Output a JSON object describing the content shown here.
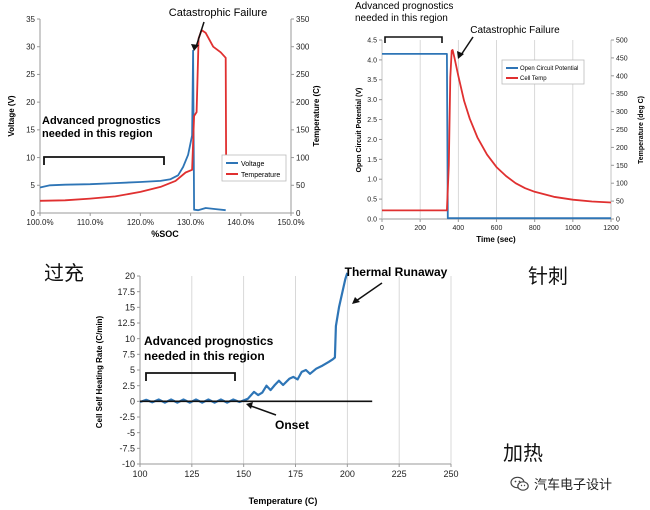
{
  "labels": {
    "overcharge": "过充",
    "nail": "针刺",
    "heating": "加热"
  },
  "watermark": {
    "text": "汽车电子设计",
    "icon": "wechat-icon"
  },
  "chart_data": [
    {
      "id": "overcharge",
      "type": "line",
      "xlabel": "%SOC",
      "ylabel": "Voltage (V)",
      "y2label": "Temperature (C)",
      "xlim": [
        100,
        150
      ],
      "ylim": [
        0,
        35
      ],
      "y2lim": [
        0,
        350
      ],
      "xticks": [
        "100.0%",
        "110.0%",
        "120.0%",
        "130.0%",
        "140.0%",
        "150.0%"
      ],
      "yticks": [
        "0",
        "5",
        "10",
        "15",
        "20",
        "25",
        "30",
        "35"
      ],
      "y2ticks": [
        "0",
        "50",
        "100",
        "150",
        "200",
        "250",
        "300",
        "350"
      ],
      "legend_position": "lower-right",
      "grid": "none",
      "series": [
        {
          "name": "Voltage",
          "axis": "y",
          "color": "#2E75B6",
          "points": [
            [
              100,
              4.6
            ],
            [
              102,
              5.0
            ],
            [
              105,
              5.1
            ],
            [
              110,
              5.2
            ],
            [
              115,
              5.4
            ],
            [
              120,
              5.6
            ],
            [
              124,
              5.8
            ],
            [
              126,
              6.1
            ],
            [
              127.5,
              6.8
            ],
            [
              128.5,
              8.3
            ],
            [
              129.5,
              10.5
            ],
            [
              130.3,
              14
            ],
            [
              130.5,
              29.3
            ],
            [
              130.7,
              0.6
            ],
            [
              131.5,
              0.5
            ],
            [
              133,
              0.9
            ],
            [
              135,
              0.7
            ],
            [
              137,
              0.5
            ]
          ]
        },
        {
          "name": "Temperature",
          "axis": "y2",
          "color": "#E03030",
          "points": [
            [
              100,
              22
            ],
            [
              105,
              23
            ],
            [
              110,
              26
            ],
            [
              115,
              30
            ],
            [
              120,
              38
            ],
            [
              124,
              47
            ],
            [
              127,
              58
            ],
            [
              129,
              73
            ],
            [
              130.3,
              78
            ],
            [
              130.7,
              175
            ],
            [
              131.2,
              182
            ],
            [
              131.6,
              315
            ],
            [
              132.2,
              330
            ],
            [
              133,
              325
            ],
            [
              134.5,
              300
            ],
            [
              136,
              290
            ],
            [
              137,
              280
            ],
            [
              137.1,
              60
            ]
          ]
        }
      ],
      "annotations": [
        "Catastrophic Failure",
        "Advanced prognostics needed in this region"
      ]
    },
    {
      "id": "nail",
      "type": "line",
      "xlabel": "Time (sec)",
      "ylabel": "Open Circuit Potential (V)",
      "y2label": "Temperature (deg C)",
      "xlim": [
        0,
        1200
      ],
      "ylim": [
        0,
        4.5
      ],
      "y2lim": [
        0,
        500
      ],
      "xticks": [
        "0",
        "200",
        "400",
        "600",
        "800",
        "1000",
        "1200"
      ],
      "yticks": [
        "0.0",
        "0.5",
        "1.0",
        "1.5",
        "2.0",
        "2.5",
        "3.0",
        "3.5",
        "4.0",
        "4.5"
      ],
      "y2ticks": [
        "0",
        "50",
        "100",
        "150",
        "200",
        "250",
        "300",
        "350",
        "400",
        "450",
        "500"
      ],
      "legend_position": "top-right",
      "grid": "vertical",
      "series": [
        {
          "name": "Open Circuit Potential",
          "axis": "y",
          "color": "#2E75B6",
          "points": [
            [
              0,
              4.15
            ],
            [
              340,
              4.15
            ],
            [
              345,
              0.02
            ],
            [
              1200,
              0.02
            ]
          ]
        },
        {
          "name": "Cell Temp",
          "axis": "y2",
          "color": "#E03030",
          "points": [
            [
              0,
              24
            ],
            [
              340,
              24
            ],
            [
              350,
              150
            ],
            [
              358,
              395
            ],
            [
              365,
              470
            ],
            [
              370,
              472
            ],
            [
              380,
              450
            ],
            [
              400,
              400
            ],
            [
              430,
              330
            ],
            [
              460,
              280
            ],
            [
              500,
              228
            ],
            [
              550,
              180
            ],
            [
              600,
              145
            ],
            [
              650,
              120
            ],
            [
              700,
              100
            ],
            [
              750,
              86
            ],
            [
              800,
              76
            ],
            [
              900,
              62
            ],
            [
              1000,
              54
            ],
            [
              1100,
              49
            ],
            [
              1200,
              46
            ]
          ]
        }
      ],
      "annotations": [
        "Catastrophic Failure",
        "Advanced prognostics needed in this region"
      ]
    },
    {
      "id": "heating",
      "type": "line",
      "xlabel": "Temperature (C)",
      "ylabel": "Cell Self Heating Rate (C/min)",
      "xlim": [
        100,
        250
      ],
      "ylim": [
        -10,
        20
      ],
      "xticks": [
        "100",
        "125",
        "150",
        "175",
        "200",
        "225",
        "250"
      ],
      "yticks": [
        "-10",
        "-7.5",
        "-5",
        "-2.5",
        "0",
        "2.5",
        "5",
        "7.5",
        "10",
        "12.5",
        "15",
        "17.5",
        "20"
      ],
      "grid": "vertical",
      "series": [
        {
          "name": "Self heating rate",
          "color": "#2E75B6",
          "points": [
            [
              100,
              -0.1
            ],
            [
              103,
              0.25
            ],
            [
              106,
              -0.15
            ],
            [
              109,
              0.3
            ],
            [
              112,
              -0.2
            ],
            [
              115,
              0.3
            ],
            [
              118,
              -0.2
            ],
            [
              121,
              0.3
            ],
            [
              124,
              -0.2
            ],
            [
              127,
              0.3
            ],
            [
              130,
              -0.2
            ],
            [
              133,
              0.3
            ],
            [
              136,
              -0.2
            ],
            [
              139,
              0.3
            ],
            [
              142,
              -0.2
            ],
            [
              145,
              0.3
            ],
            [
              148,
              -0.1
            ],
            [
              152,
              0.4
            ],
            [
              155,
              1.5
            ],
            [
              157,
              1.0
            ],
            [
              159,
              1.4
            ],
            [
              161,
              2.5
            ],
            [
              163,
              1.8
            ],
            [
              165,
              2.6
            ],
            [
              167,
              3.3
            ],
            [
              169,
              2.6
            ],
            [
              172,
              3.6
            ],
            [
              174,
              3.9
            ],
            [
              176,
              3.5
            ],
            [
              178,
              4.7
            ],
            [
              180,
              5.0
            ],
            [
              182,
              4.4
            ],
            [
              185,
              5.2
            ],
            [
              188,
              5.7
            ],
            [
              191,
              6.3
            ],
            [
              193,
              6.7
            ],
            [
              194,
              7.0
            ],
            [
              194.5,
              12
            ],
            [
              196,
              15
            ],
            [
              198,
              18
            ],
            [
              199,
              19.5
            ],
            [
              200,
              20.5
            ]
          ]
        },
        {
          "name": "Baseline",
          "color": "#111111",
          "points": [
            [
              100,
              0
            ],
            [
              212,
              0
            ]
          ]
        }
      ],
      "annotations": [
        "Thermal Runaway",
        "Advanced prognostics needed in this region",
        "Onset"
      ]
    }
  ]
}
